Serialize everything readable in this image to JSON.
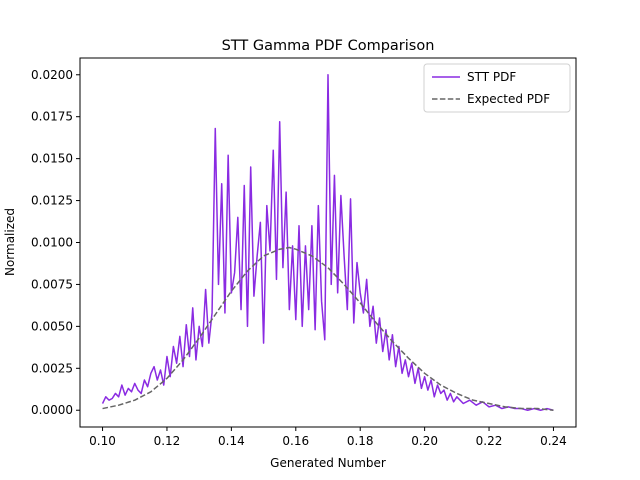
{
  "chart_data": {
    "type": "line",
    "title": "STT Gamma PDF Comparison",
    "xlabel": "Generated Number",
    "ylabel": "Normalized",
    "xlim": [
      0.093,
      0.247
    ],
    "ylim": [
      -0.001,
      0.021
    ],
    "xticks": [
      0.1,
      0.12,
      0.14,
      0.16,
      0.18,
      0.2,
      0.22,
      0.24
    ],
    "xtick_labels": [
      "0.10",
      "0.12",
      "0.14",
      "0.16",
      "0.18",
      "0.20",
      "0.22",
      "0.24"
    ],
    "yticks": [
      0.0,
      0.0025,
      0.005,
      0.0075,
      0.01,
      0.0125,
      0.015,
      0.0175,
      0.02
    ],
    "ytick_labels": [
      "0.0000",
      "0.0025",
      "0.0050",
      "0.0075",
      "0.0100",
      "0.0125",
      "0.0150",
      "0.0175",
      "0.0200"
    ],
    "grid": false,
    "legend_position": "upper right",
    "series": [
      {
        "name": "STT PDF",
        "color": "#8a2be2",
        "style": "solid",
        "x": [
          0.1,
          0.101,
          0.102,
          0.103,
          0.104,
          0.105,
          0.106,
          0.107,
          0.108,
          0.109,
          0.11,
          0.111,
          0.112,
          0.113,
          0.114,
          0.115,
          0.116,
          0.117,
          0.118,
          0.119,
          0.12,
          0.121,
          0.122,
          0.123,
          0.124,
          0.125,
          0.126,
          0.127,
          0.128,
          0.129,
          0.13,
          0.131,
          0.132,
          0.133,
          0.134,
          0.135,
          0.136,
          0.137,
          0.138,
          0.139,
          0.14,
          0.141,
          0.142,
          0.143,
          0.144,
          0.145,
          0.146,
          0.147,
          0.148,
          0.149,
          0.15,
          0.151,
          0.152,
          0.153,
          0.154,
          0.155,
          0.156,
          0.157,
          0.158,
          0.159,
          0.16,
          0.161,
          0.162,
          0.163,
          0.164,
          0.165,
          0.166,
          0.167,
          0.168,
          0.169,
          0.17,
          0.171,
          0.172,
          0.173,
          0.174,
          0.175,
          0.176,
          0.177,
          0.178,
          0.179,
          0.18,
          0.181,
          0.182,
          0.183,
          0.184,
          0.185,
          0.186,
          0.187,
          0.188,
          0.189,
          0.19,
          0.191,
          0.192,
          0.193,
          0.194,
          0.195,
          0.196,
          0.197,
          0.198,
          0.199,
          0.2,
          0.201,
          0.202,
          0.203,
          0.204,
          0.205,
          0.206,
          0.207,
          0.208,
          0.209,
          0.21,
          0.212,
          0.214,
          0.216,
          0.218,
          0.22,
          0.222,
          0.224,
          0.226,
          0.228,
          0.23,
          0.232,
          0.234,
          0.236,
          0.238,
          0.24
        ],
        "y": [
          0.0004,
          0.0008,
          0.0006,
          0.0007,
          0.001,
          0.0008,
          0.0015,
          0.0009,
          0.0013,
          0.0011,
          0.0016,
          0.0012,
          0.001,
          0.0018,
          0.0014,
          0.0022,
          0.0026,
          0.0018,
          0.0024,
          0.0015,
          0.0032,
          0.002,
          0.0038,
          0.0028,
          0.0044,
          0.0026,
          0.0051,
          0.0032,
          0.0061,
          0.003,
          0.005,
          0.0038,
          0.0072,
          0.004,
          0.0058,
          0.0168,
          0.0075,
          0.0135,
          0.0058,
          0.0152,
          0.007,
          0.0082,
          0.0115,
          0.006,
          0.0134,
          0.005,
          0.0145,
          0.0068,
          0.0092,
          0.0112,
          0.004,
          0.0122,
          0.0095,
          0.0155,
          0.0078,
          0.0172,
          0.0085,
          0.013,
          0.006,
          0.0098,
          0.0054,
          0.011,
          0.005,
          0.0098,
          0.006,
          0.011,
          0.0048,
          0.0122,
          0.0065,
          0.0042,
          0.02,
          0.0075,
          0.014,
          0.007,
          0.0128,
          0.0092,
          0.006,
          0.0126,
          0.0052,
          0.0088,
          0.007,
          0.0058,
          0.0078,
          0.005,
          0.0062,
          0.004,
          0.0055,
          0.0035,
          0.0048,
          0.003,
          0.0045,
          0.0026,
          0.0038,
          0.0022,
          0.003,
          0.002,
          0.0028,
          0.0016,
          0.0025,
          0.0013,
          0.002,
          0.0012,
          0.0018,
          0.0008,
          0.0015,
          0.001,
          0.0012,
          0.0006,
          0.001,
          0.0005,
          0.0008,
          0.0004,
          0.0006,
          0.0003,
          0.0005,
          0.0002,
          0.0003,
          0.0001,
          0.0002,
          0.0001,
          0.0001,
          0.0,
          0.0001,
          0.0,
          0.0001,
          0.0
        ]
      },
      {
        "name": "Expected PDF",
        "color": "#666666",
        "style": "dashed",
        "x": [
          0.1,
          0.105,
          0.11,
          0.115,
          0.12,
          0.125,
          0.13,
          0.135,
          0.14,
          0.145,
          0.15,
          0.155,
          0.158,
          0.16,
          0.165,
          0.17,
          0.175,
          0.18,
          0.185,
          0.19,
          0.195,
          0.2,
          0.205,
          0.21,
          0.215,
          0.22,
          0.225,
          0.23,
          0.235,
          0.24
        ],
        "y": [
          0.0001,
          0.0003,
          0.0006,
          0.0011,
          0.0019,
          0.003,
          0.0043,
          0.0057,
          0.0071,
          0.0083,
          0.0092,
          0.0096,
          0.0097,
          0.0096,
          0.0092,
          0.0085,
          0.0075,
          0.0064,
          0.0052,
          0.0041,
          0.0031,
          0.0022,
          0.0015,
          0.001,
          0.0006,
          0.0004,
          0.0002,
          0.0001,
          0.0001,
          0.0
        ]
      }
    ]
  }
}
